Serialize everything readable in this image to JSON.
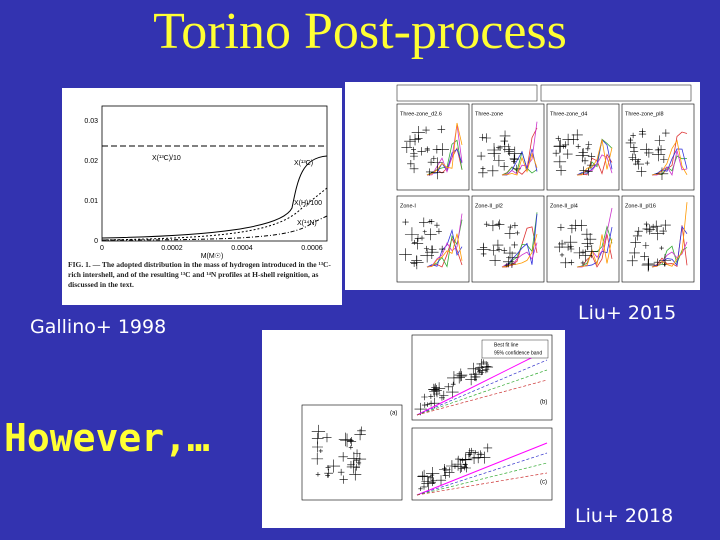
{
  "title": "Torino Post-process",
  "labels": {
    "gallino": "Gallino+ 1998",
    "liu2015": "Liu+ 2015",
    "however": "However,…",
    "liu2018": "Liu+ 2018"
  },
  "fig_1998": {
    "xlabel": "M(M☉)",
    "xticks": [
      "0",
      "0.0002",
      "0.0004",
      "0.0006"
    ],
    "yticks": [
      "0",
      "0.01",
      "0.02",
      "0.03"
    ],
    "curves": [
      "X(¹³C)/10",
      "X(¹³C)",
      "X(H)/100",
      "X(¹⁴N)"
    ],
    "caption": "FIG. 1. — The adopted distribution in the mass of hydrogen introduced in the ¹³C-rich intershell, and of the resulting ¹³C and ¹⁴N profiles at H-shell reignition, as discussed in the text."
  },
  "fig_2015": {
    "panels": [
      "Three-zone_d2.6",
      "Three-zone",
      "Three-zone_d4",
      "Three-zone_pl8",
      "Zone-I",
      "Zone-II_pl2",
      "Zone-II_pl4",
      "Zone-II_pl16"
    ]
  },
  "fig_2018": {
    "panels": [
      "(a)",
      "(b)",
      "(c)"
    ],
    "legend": [
      "Best fit line",
      "95% confidence band"
    ]
  }
}
